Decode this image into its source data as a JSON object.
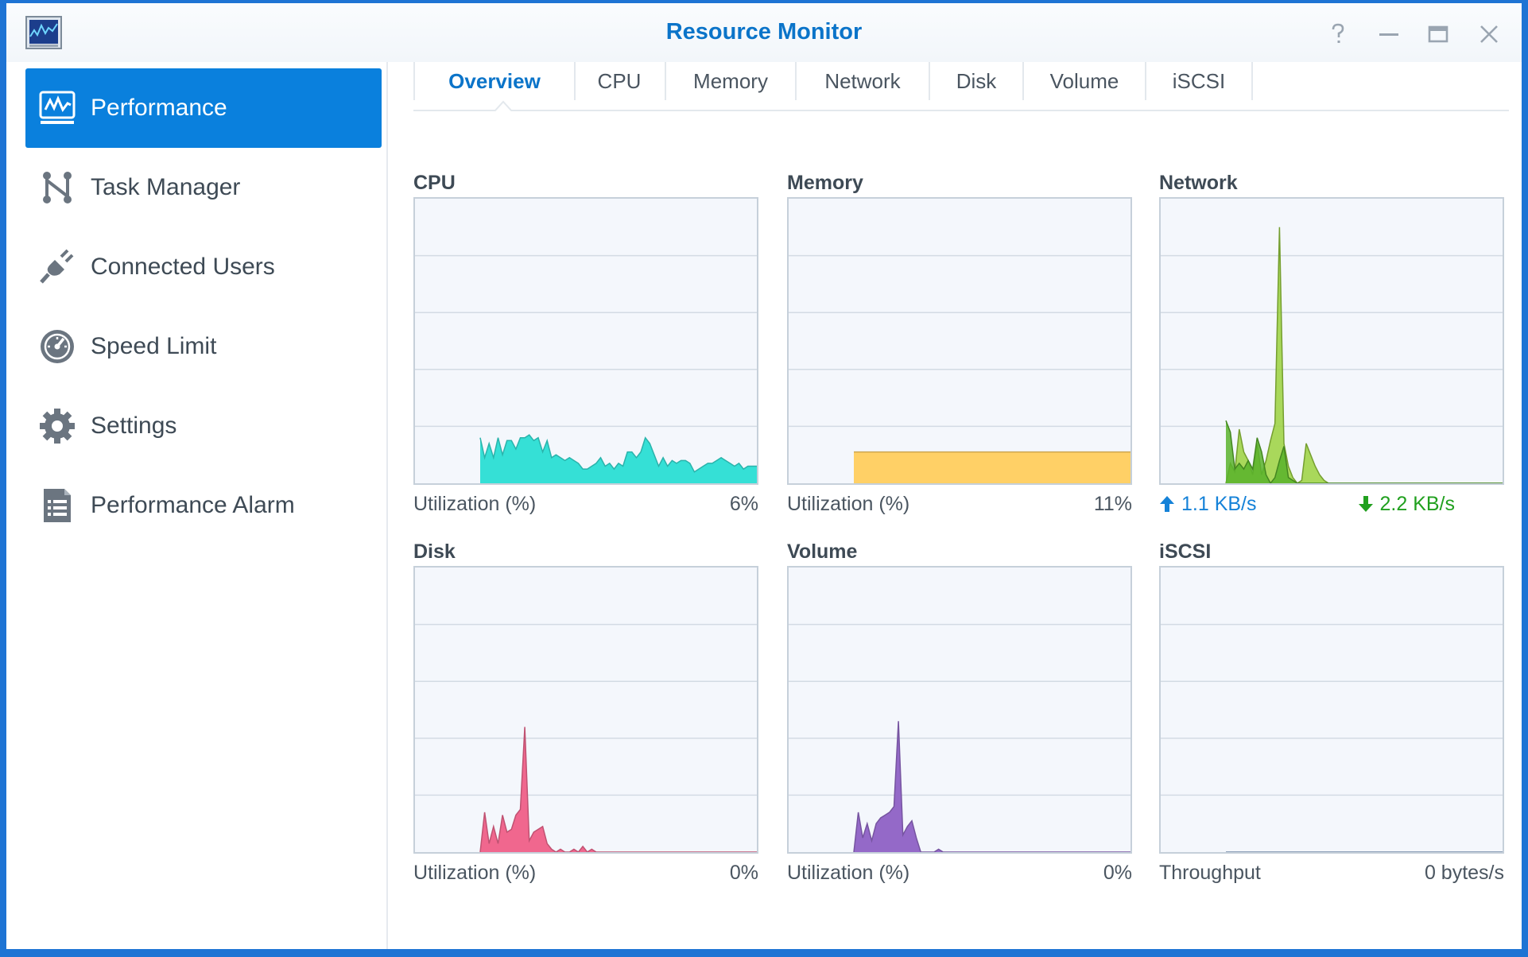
{
  "window": {
    "title": "Resource Monitor"
  },
  "colors": {
    "accent": "#0a80dd",
    "cpu": "#35e0d6",
    "memory": "#ffd066",
    "network_up": "#59b32b",
    "network_down": "#9bd23e",
    "disk": "#f0678e",
    "volume": "#9469c8",
    "iscsi": "#8aa7cc"
  },
  "sidebar": {
    "items": [
      {
        "label": "Performance",
        "icon": "performance-icon",
        "active": true
      },
      {
        "label": "Task Manager",
        "icon": "task-manager-icon"
      },
      {
        "label": "Connected Users",
        "icon": "plug-icon"
      },
      {
        "label": "Speed Limit",
        "icon": "speedometer-icon"
      },
      {
        "label": "Settings",
        "icon": "gear-icon"
      },
      {
        "label": "Performance Alarm",
        "icon": "document-list-icon"
      }
    ]
  },
  "tabs": [
    "Overview",
    "CPU",
    "Memory",
    "Network",
    "Disk",
    "Volume",
    "iSCSI"
  ],
  "active_tab": "Overview",
  "widgets": {
    "cpu": {
      "title": "CPU",
      "footer_label": "Utilization (%)",
      "footer_value": "6%"
    },
    "memory": {
      "title": "Memory",
      "footer_label": "Utilization (%)",
      "footer_value": "11%"
    },
    "network": {
      "title": "Network",
      "upload": "1.1 KB/s",
      "download": "2.2 KB/s"
    },
    "disk": {
      "title": "Disk",
      "footer_label": "Utilization (%)",
      "footer_value": "0%"
    },
    "volume": {
      "title": "Volume",
      "footer_label": "Utilization (%)",
      "footer_value": "0%"
    },
    "iscsi": {
      "title": "iSCSI",
      "footer_label": "Throughput",
      "footer_value": "0 bytes/s"
    }
  },
  "chart_data": [
    {
      "type": "area",
      "name": "CPU",
      "ylim": [
        0,
        100
      ],
      "values": [
        16,
        9,
        14,
        9,
        16,
        10,
        15,
        15,
        12,
        16,
        16,
        17,
        15,
        16,
        11,
        15,
        9,
        10,
        9,
        8,
        9,
        8,
        7,
        5,
        5,
        6,
        7,
        9,
        6,
        7,
        5,
        7,
        6,
        11,
        11,
        9,
        11,
        16,
        14,
        10,
        6,
        9,
        6,
        8,
        7,
        8,
        8,
        7,
        4,
        5,
        6,
        7,
        7,
        8,
        9,
        8,
        7,
        6,
        7,
        5,
        6,
        6,
        6
      ]
    },
    {
      "type": "area",
      "name": "Memory",
      "ylim": [
        0,
        100
      ],
      "values": [
        11,
        11,
        11,
        11,
        11,
        11,
        11,
        11,
        11,
        11,
        11,
        11,
        11,
        11,
        11,
        11,
        11,
        11,
        11,
        11,
        11,
        11,
        11,
        11,
        11,
        11,
        11,
        11,
        11,
        11,
        11,
        11,
        11,
        11,
        11,
        11,
        11,
        11,
        11,
        11,
        11,
        11,
        11,
        11,
        11,
        11,
        11,
        11,
        11,
        11,
        11,
        11,
        11,
        11,
        11,
        11,
        11,
        11,
        11,
        11,
        11,
        11,
        11
      ]
    },
    {
      "type": "area",
      "name": "Network",
      "series": [
        {
          "name": "upload",
          "values": [
            22,
            18,
            5,
            7,
            5,
            8,
            5,
            16,
            11,
            3,
            0,
            2,
            8,
            13,
            2,
            1,
            0,
            0,
            0,
            0,
            0,
            0,
            0,
            0,
            0,
            0,
            0,
            0,
            0,
            0,
            0,
            0,
            0,
            0,
            0,
            0,
            0,
            0,
            0,
            0,
            0,
            0,
            0,
            0,
            0,
            0,
            0,
            0,
            0,
            0,
            0,
            0,
            0,
            0,
            0,
            0,
            0,
            0,
            0,
            0,
            0,
            0,
            0
          ]
        },
        {
          "name": "download",
          "values": [
            0,
            7,
            4,
            19,
            11,
            8,
            3,
            14,
            3,
            8,
            15,
            21,
            90,
            14,
            6,
            2,
            0,
            1,
            14,
            10,
            6,
            3,
            1,
            0,
            0,
            0,
            0,
            0,
            0,
            0,
            0,
            0,
            0,
            0,
            0,
            0,
            0,
            0,
            0,
            0,
            0,
            0,
            0,
            0,
            0,
            0,
            0,
            0,
            0,
            0,
            0,
            0,
            0,
            0,
            0,
            0,
            0,
            0,
            0,
            0,
            0,
            0,
            0
          ]
        }
      ]
    },
    {
      "type": "area",
      "name": "Disk",
      "ylim": [
        0,
        100
      ],
      "values": [
        0,
        14,
        3,
        9,
        3,
        13,
        7,
        8,
        13,
        15,
        44,
        4,
        7,
        8,
        9,
        3,
        1,
        0,
        1,
        0,
        0,
        1,
        0,
        2,
        0,
        1,
        0,
        0,
        0,
        0,
        0,
        0,
        0,
        0,
        0,
        0,
        0,
        0,
        0,
        0,
        0,
        0,
        0,
        0,
        0,
        0,
        0,
        0,
        0,
        0,
        0,
        0,
        0,
        0,
        0,
        0,
        0,
        0,
        0,
        0,
        0,
        0,
        0
      ]
    },
    {
      "type": "area",
      "name": "Volume",
      "ylim": [
        0,
        100
      ],
      "values": [
        0,
        14,
        5,
        10,
        4,
        10,
        12,
        13,
        14,
        16,
        46,
        6,
        9,
        11,
        5,
        0,
        0,
        0,
        0,
        1,
        0,
        0,
        0,
        0,
        0,
        0,
        0,
        0,
        0,
        0,
        0,
        0,
        0,
        0,
        0,
        0,
        0,
        0,
        0,
        0,
        0,
        0,
        0,
        0,
        0,
        0,
        0,
        0,
        0,
        0,
        0,
        0,
        0,
        0,
        0,
        0,
        0,
        0,
        0,
        0,
        0,
        0,
        0
      ]
    },
    {
      "type": "area",
      "name": "iSCSI",
      "values": [
        0,
        0,
        0,
        0,
        0,
        0,
        0,
        0,
        0,
        0,
        0,
        0,
        0,
        0,
        0,
        0,
        0,
        0,
        0,
        0,
        0,
        0,
        0,
        0,
        0,
        0,
        0,
        0,
        0,
        0,
        0,
        0,
        0,
        0,
        0,
        0,
        0,
        0,
        0,
        0,
        0,
        0,
        0,
        0,
        0,
        0,
        0,
        0,
        0,
        0,
        0,
        0,
        0,
        0,
        0,
        0,
        0,
        0,
        0,
        0,
        0,
        0,
        0
      ]
    }
  ]
}
